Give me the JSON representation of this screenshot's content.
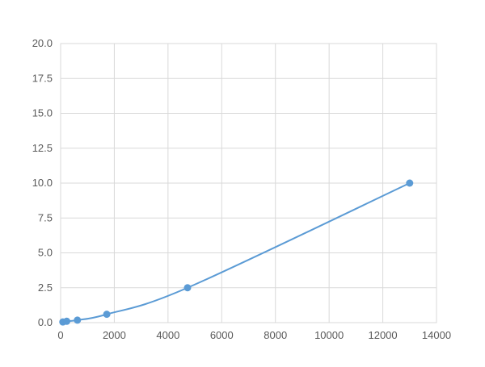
{
  "chart_data": {
    "type": "scatter",
    "title": "",
    "xlabel": "",
    "ylabel": "",
    "xlim": [
      0,
      14000
    ],
    "ylim": [
      0,
      20
    ],
    "xticks": [
      "0",
      "2000",
      "4000",
      "6000",
      "8000",
      "10000",
      "12000",
      "14000"
    ],
    "yticks": [
      "0.0",
      "2.5",
      "5.0",
      "7.5",
      "10.0",
      "12.5",
      "15.0",
      "17.5",
      "20.0"
    ],
    "grid": true,
    "color": "#5b9bd5",
    "series": [
      {
        "x": [
          83,
          227,
          625,
          1719,
          4727,
          13000
        ],
        "y": [
          0.05,
          0.1,
          0.18,
          0.6,
          2.5,
          10.0
        ]
      }
    ],
    "trendline": "smooth"
  }
}
